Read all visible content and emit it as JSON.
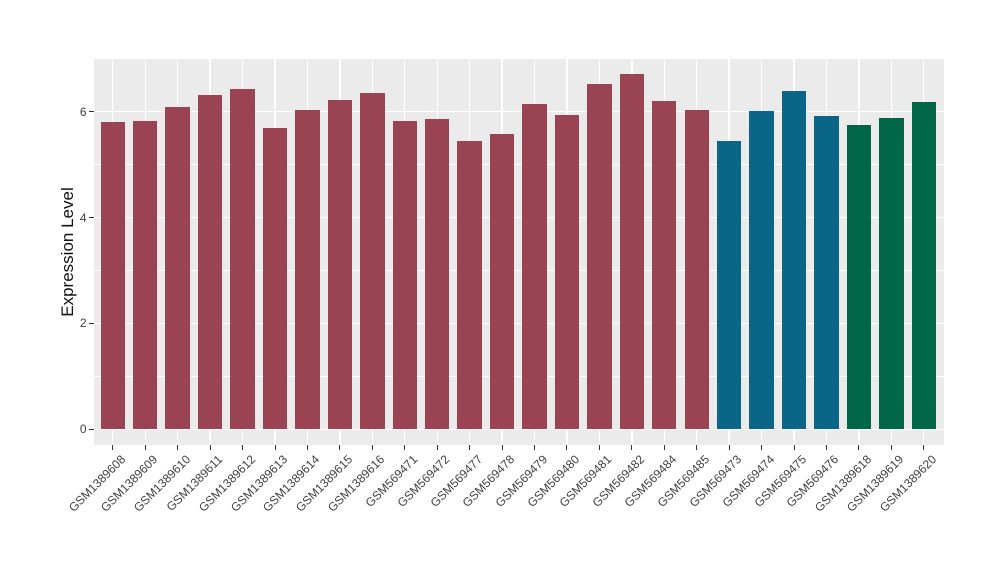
{
  "chart_data": {
    "type": "bar",
    "title": "",
    "xlabel": "",
    "ylabel": "Expression Level",
    "ylim": [
      0,
      7
    ],
    "yticks": [
      0,
      2,
      4,
      6
    ],
    "minor_gridlines": [
      1,
      3,
      5,
      7
    ],
    "grid": "white major+minor horizontal lines and white vertical lines at each category on gray panel",
    "legend_position": "none",
    "categories": [
      "GSM1389608",
      "GSM1389609",
      "GSM1389610",
      "GSM1389611",
      "GSM1389612",
      "GSM1389613",
      "GSM1389614",
      "GSM1389615",
      "GSM1389616",
      "GSM569471",
      "GSM569472",
      "GSM569477",
      "GSM569478",
      "GSM569479",
      "GSM569480",
      "GSM569481",
      "GSM569482",
      "GSM569484",
      "GSM569485",
      "GSM569473",
      "GSM569474",
      "GSM569475",
      "GSM569476",
      "GSM1389618",
      "GSM1389619",
      "GSM1389620"
    ],
    "values": [
      5.81,
      5.83,
      6.08,
      6.32,
      6.43,
      5.7,
      6.04,
      6.22,
      6.35,
      5.82,
      5.87,
      5.45,
      5.58,
      6.15,
      5.93,
      6.52,
      6.71,
      6.21,
      6.04,
      5.45,
      6.01,
      6.39,
      5.92,
      5.75,
      5.88,
      6.18
    ],
    "bar_groups": [
      "group1",
      "group1",
      "group1",
      "group1",
      "group1",
      "group1",
      "group1",
      "group1",
      "group1",
      "group1",
      "group1",
      "group1",
      "group1",
      "group1",
      "group1",
      "group1",
      "group1",
      "group1",
      "group1",
      "group2",
      "group2",
      "group2",
      "group2",
      "group3",
      "group3",
      "group3"
    ],
    "group_colors": {
      "group1": "#9A4352",
      "group2": "#0A6587",
      "group3": "#006647"
    },
    "styles": {
      "panel_bg": "#EBEBEB",
      "grid_color": "#FFFFFF",
      "axis_text_color": "#404040",
      "axis_title_color": "#111111",
      "tick_mark_color": "#333333"
    }
  }
}
